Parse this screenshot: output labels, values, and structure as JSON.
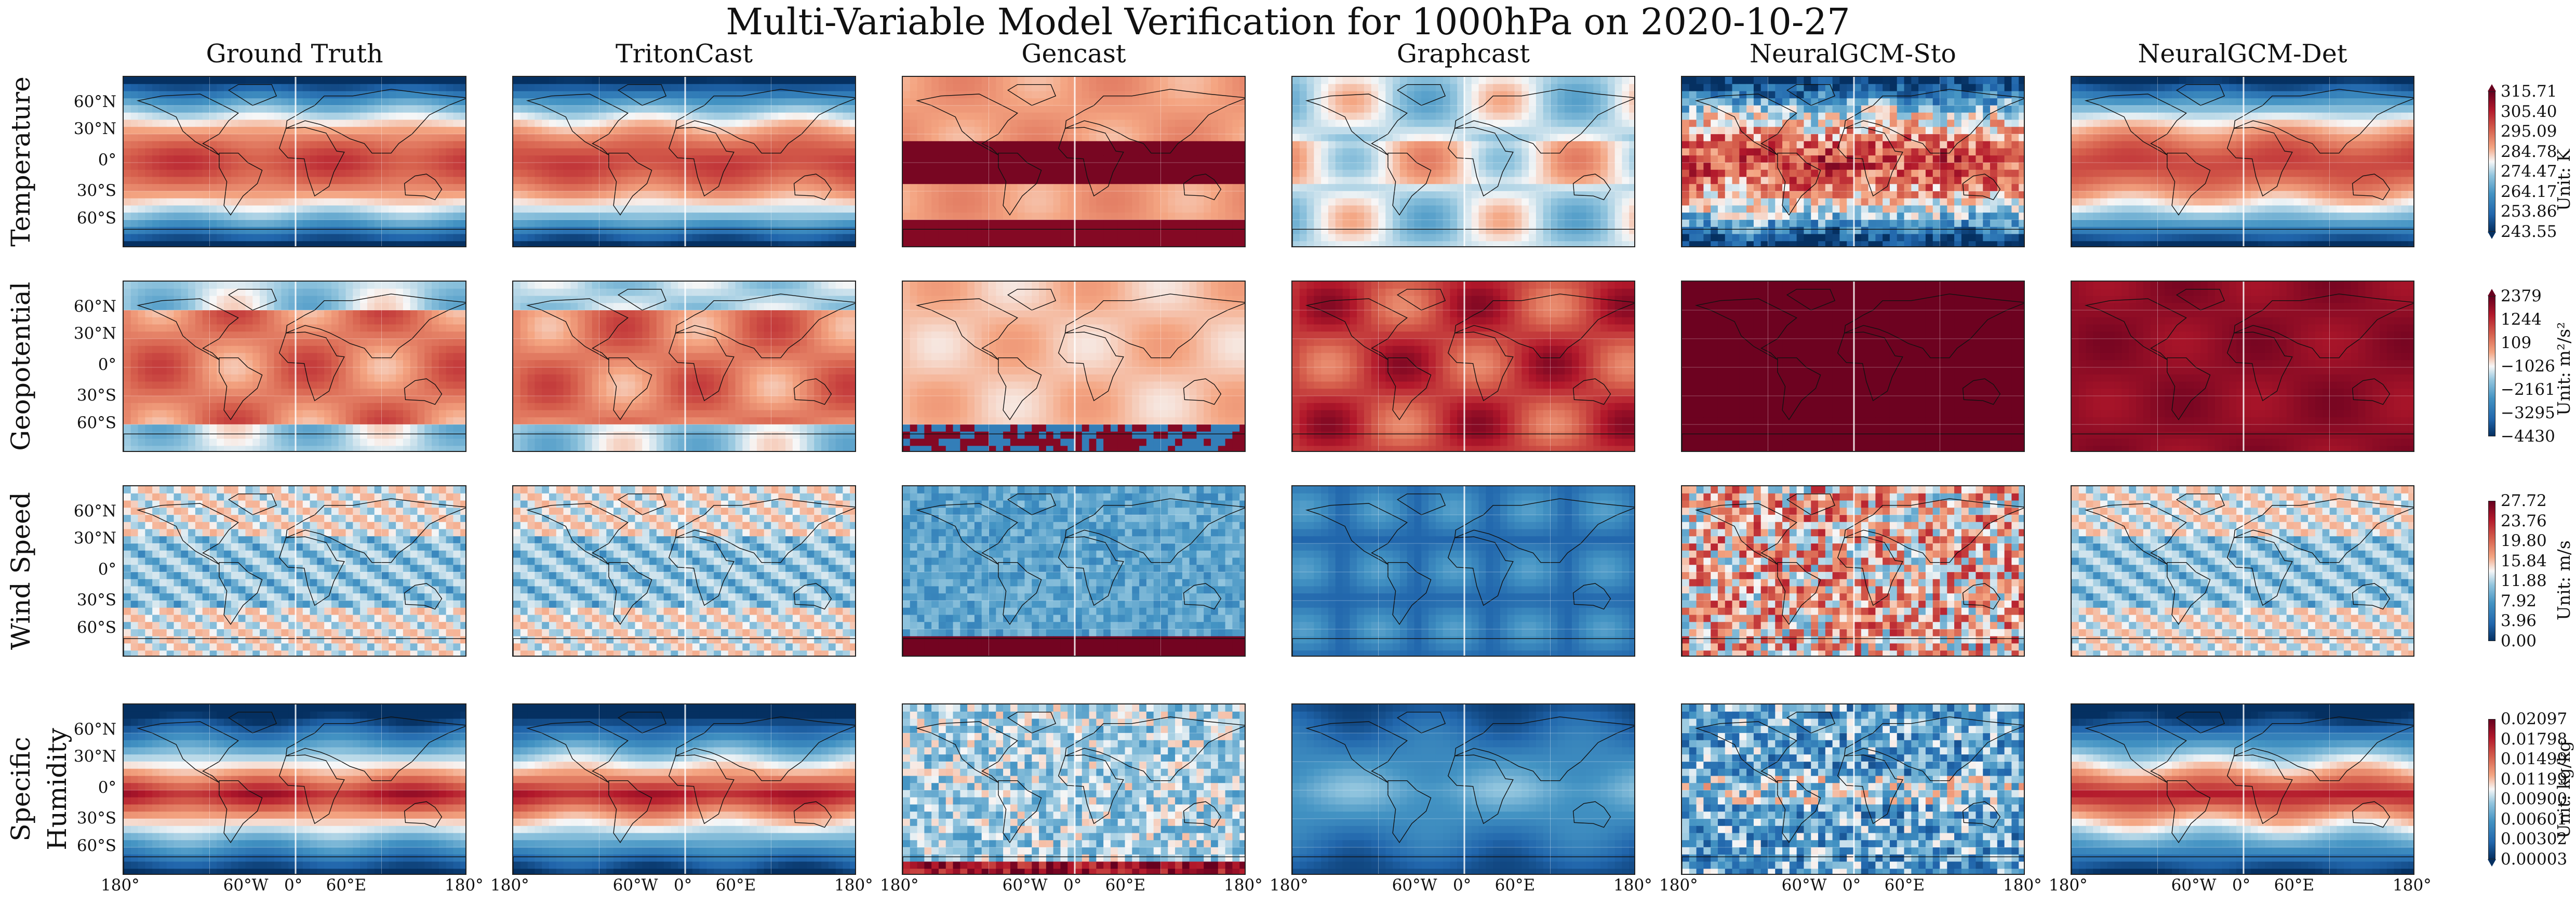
{
  "title": "Multi-Variable Model Verification for 1000hPa on 2020-10-27",
  "columns": [
    "Ground Truth",
    "TritonCast",
    "Gencast",
    "Graphcast",
    "NeuralGCM-Sto",
    "NeuralGCM-Det"
  ],
  "rows": [
    {
      "label": "Temperature",
      "unit": "Unit: K",
      "ticks": [
        "315.71",
        "305.40",
        "295.09",
        "284.78",
        "274.47",
        "264.17",
        "253.86",
        "243.55"
      ],
      "extend": "both"
    },
    {
      "label": "Geopotential",
      "unit": "Unit: m²/s²",
      "ticks": [
        "2379",
        "1244",
        "109",
        "−1026",
        "−2161",
        "−3295",
        "−4430"
      ],
      "extend": "max"
    },
    {
      "label": "Wind Speed",
      "unit": "Unit: m/s",
      "ticks": [
        "27.72",
        "23.76",
        "19.80",
        "15.84",
        "11.88",
        "7.92",
        "3.96",
        "0.00"
      ],
      "extend": "none"
    },
    {
      "label": "Specific Humidity",
      "unit": "Unit: kg/kg",
      "ticks": [
        "0.02097",
        "0.01798",
        "0.01499",
        "0.01199",
        "0.00900",
        "0.00601",
        "0.00302",
        "0.00003"
      ],
      "extend": "min"
    }
  ],
  "lat_ticks": [
    "60°N",
    "30°N",
    "0°",
    "30°S",
    "60°S"
  ],
  "lon_ticks": [
    "180°",
    "60°W",
    "0°",
    "60°E",
    "180°"
  ],
  "colormap": {
    "low": "#053061",
    "mid": "#f7f7f7",
    "high": "#67001f"
  }
}
